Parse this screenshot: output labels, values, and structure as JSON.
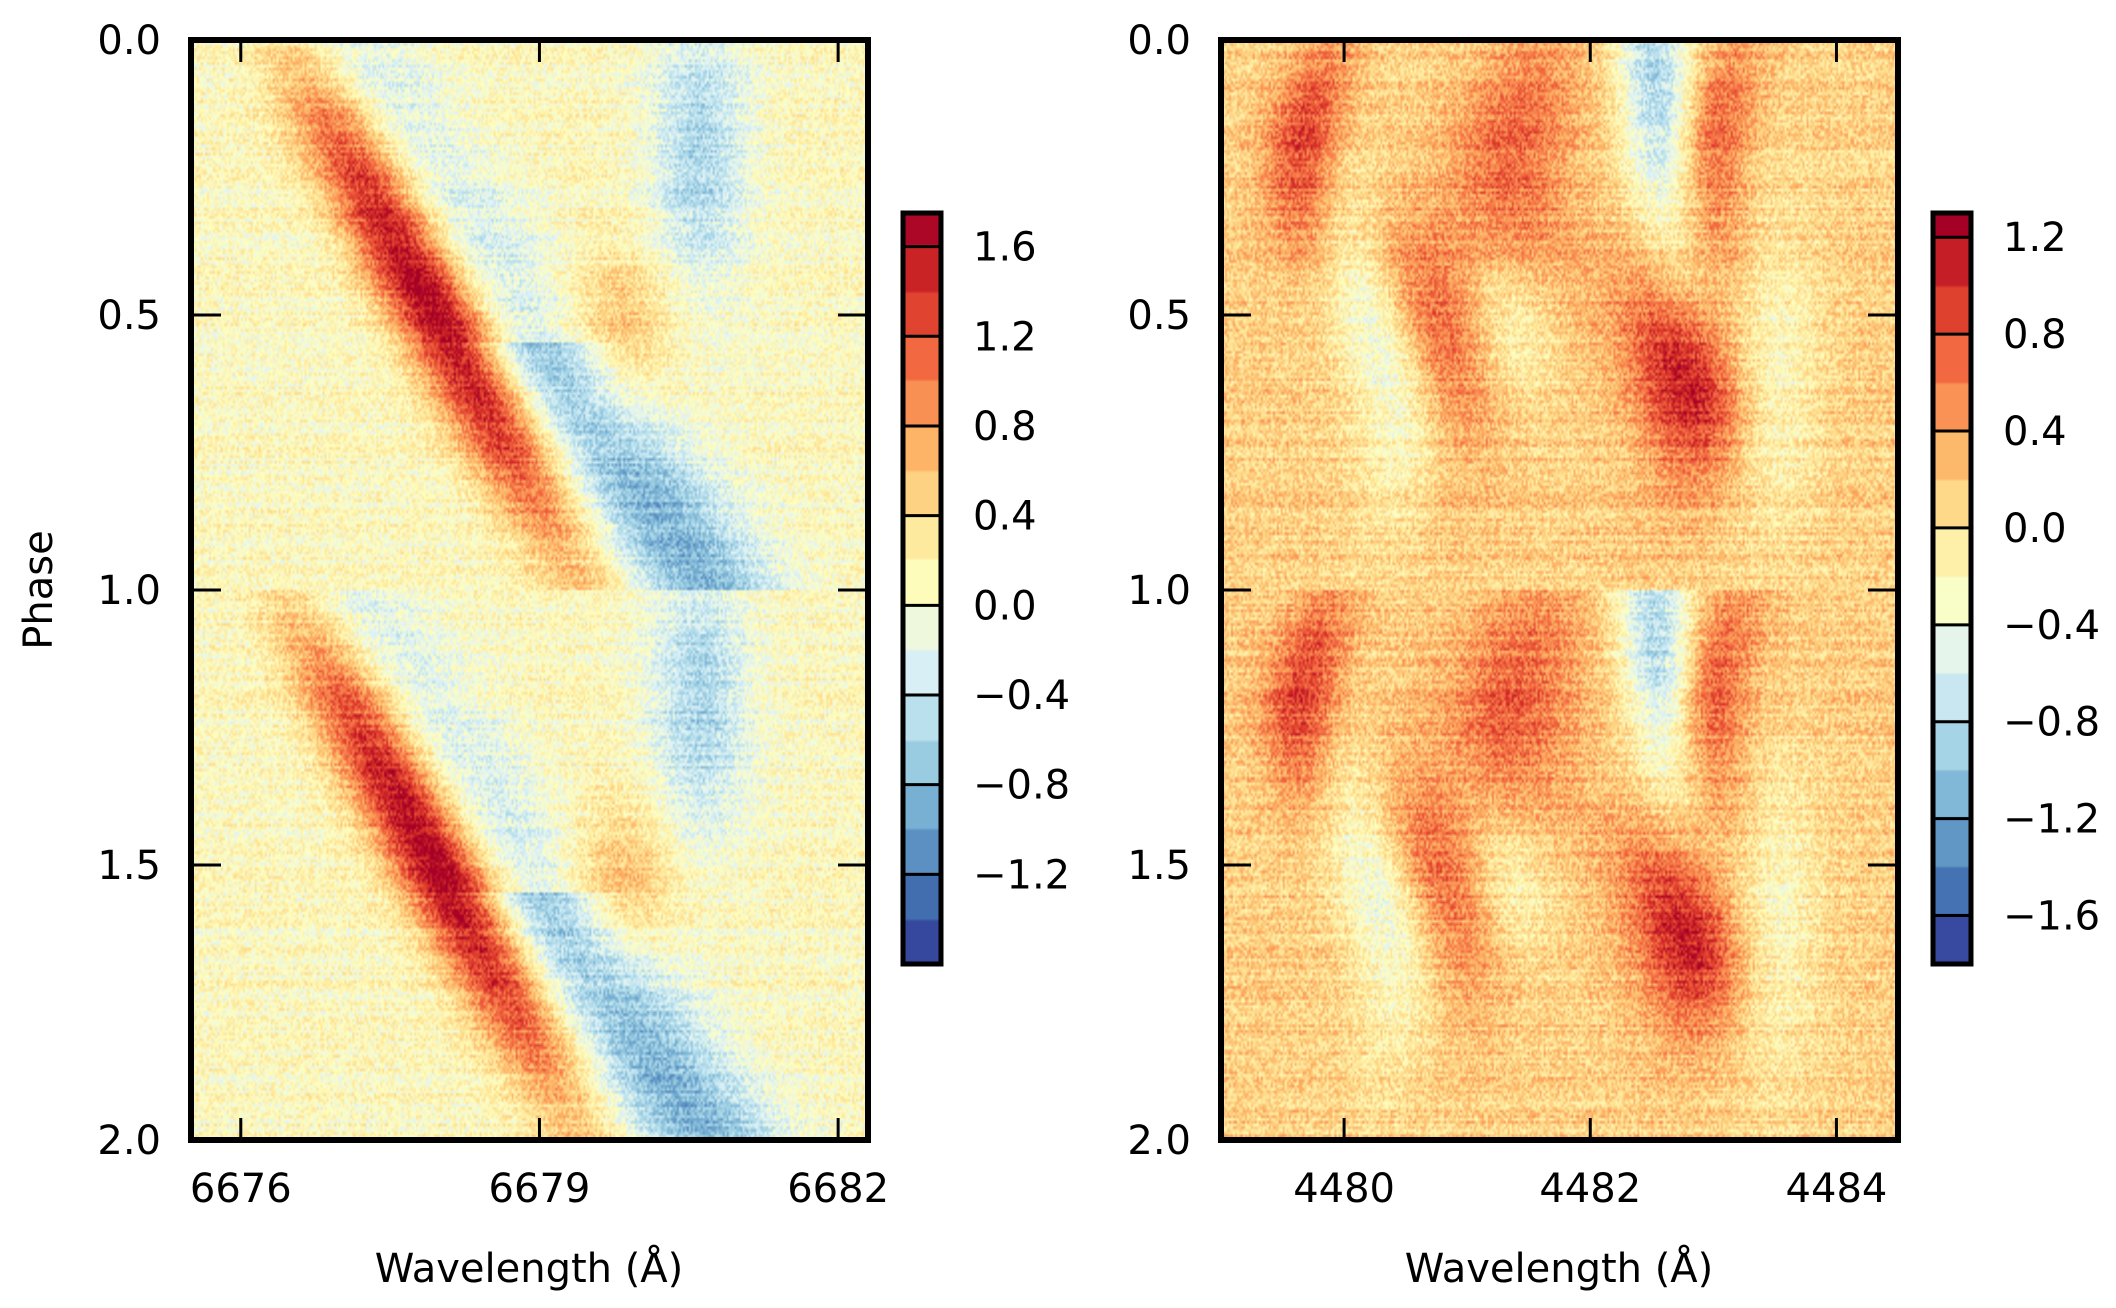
{
  "figure": {
    "ylabel": "Phase",
    "xlabel": "Wavelength (Å)"
  },
  "colormap": {
    "name": "RdYlBu_r",
    "stops": [
      "#313695",
      "#4575b4",
      "#74add1",
      "#abd9e9",
      "#e0f3f8",
      "#ffffbf",
      "#fee090",
      "#fdae61",
      "#f46d43",
      "#d73027",
      "#a50026"
    ]
  },
  "chart_data": [
    {
      "type": "heatmap",
      "title": "",
      "xlabel": "Wavelength (Å)",
      "ylabel": "Phase",
      "xlim": [
        6675.5,
        6682.3
      ],
      "ylim": [
        0.0,
        2.0
      ],
      "y_inverted": true,
      "x_ticks": [
        6676,
        6679,
        6682
      ],
      "x_tick_labels": [
        "6676",
        "6679",
        "6682"
      ],
      "y_ticks": [
        0.0,
        0.5,
        1.0,
        1.5,
        2.0
      ],
      "y_tick_labels": [
        "0.0",
        "0.5",
        "1.0",
        "1.5",
        "2.0"
      ],
      "colorbar": {
        "vmin": -1.6,
        "vmax": 1.75,
        "ticks": [
          1.6,
          1.2,
          0.8,
          0.4,
          0.0,
          -0.4,
          -0.8,
          -1.2
        ],
        "tick_labels": [
          "1.6",
          "1.2",
          "0.8",
          "0.4",
          "0.0",
          "−0.4",
          "−0.8",
          "−1.2"
        ]
      },
      "features": [
        {
          "kind": "emission-s-wave",
          "amplitude": 1.6,
          "center": 6678.6,
          "semi_amplitude": 2.2,
          "phase_offset": 0.0,
          "width": 0.35
        },
        {
          "kind": "absorption-s-wave",
          "amplitude": -1.2,
          "center": 6678.4,
          "semi_amplitude": 1.6,
          "phase_offset": 0.5,
          "width": 0.5
        }
      ]
    },
    {
      "type": "heatmap",
      "title": "",
      "xlabel": "Wavelength (Å)",
      "ylabel": "",
      "xlim": [
        4479.0,
        4484.5
      ],
      "ylim": [
        0.0,
        2.0
      ],
      "y_inverted": true,
      "x_ticks": [
        4480,
        4482,
        4484
      ],
      "x_tick_labels": [
        "4480",
        "4482",
        "4484"
      ],
      "y_ticks": [
        0.0,
        0.5,
        1.0,
        1.5,
        2.0
      ],
      "y_tick_labels": [
        "0.0",
        "0.5",
        "1.0",
        "1.5",
        "2.0"
      ],
      "colorbar": {
        "vmin": -1.8,
        "vmax": 1.3,
        "ticks": [
          1.2,
          0.8,
          0.4,
          0.0,
          -0.4,
          -0.8,
          -1.2,
          -1.6
        ],
        "tick_labels": [
          "1.2",
          "0.8",
          "0.4",
          "0.0",
          "−0.4",
          "−0.8",
          "−1.2",
          "−1.6"
        ]
      },
      "features": [
        {
          "kind": "emission-blob-series",
          "amplitude": 1.1,
          "centers": [
            4479.9,
            4480.9,
            4481.7,
            4482.6,
            4483.2
          ],
          "width": 0.3
        },
        {
          "kind": "absorption-band",
          "amplitude": -0.9,
          "center": 4482.5,
          "width": 0.25
        }
      ]
    }
  ]
}
